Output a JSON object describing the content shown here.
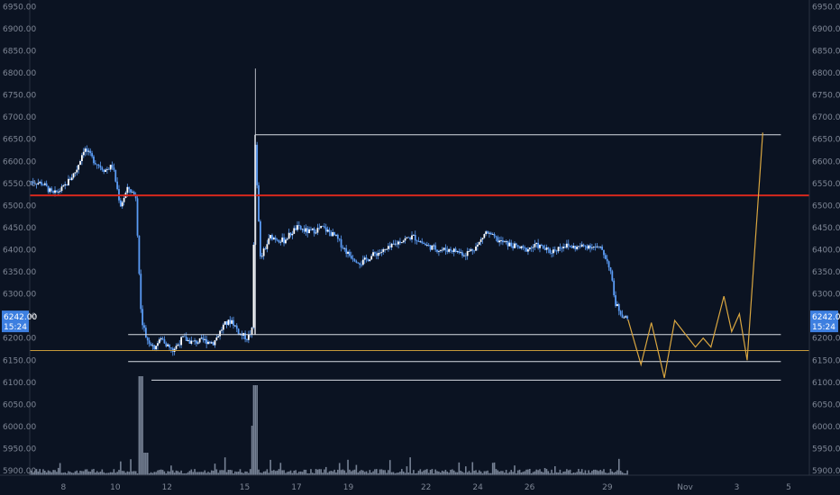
{
  "chart_data": {
    "type": "candlestick",
    "y_range": [
      5890,
      6965
    ],
    "y_ticks": [
      "5900.00",
      "5950.00",
      "6000.00",
      "6050.00",
      "6100.00",
      "6150.00",
      "6200.00",
      "6250.00",
      "6300.00",
      "6350.00",
      "6400.00",
      "6450.00",
      "6500.00",
      "6550.00",
      "6600.00",
      "6650.00",
      "6700.00",
      "6750.00",
      "6800.00",
      "6850.00",
      "6900.00",
      "6950.00"
    ],
    "x_labels": [
      {
        "label": "8",
        "day": 8
      },
      {
        "label": "10",
        "day": 10
      },
      {
        "label": "12",
        "day": 12
      },
      {
        "label": "15",
        "day": 15
      },
      {
        "label": "17",
        "day": 17
      },
      {
        "label": "19",
        "day": 19
      },
      {
        "label": "22",
        "day": 22
      },
      {
        "label": "24",
        "day": 24
      },
      {
        "label": "26",
        "day": 26
      },
      {
        "label": "29",
        "day": 29
      },
      {
        "label": "Nov",
        "day": 32
      },
      {
        "label": "3",
        "day": 34
      },
      {
        "label": "5",
        "day": 36
      }
    ],
    "day_range": [
      6.7,
      36.8
    ],
    "price_tag": {
      "value": 6242,
      "label": "6242.00",
      "countdown": "15:24"
    },
    "candle_color": "#5b9cf6",
    "volume_color": "#8a95a8",
    "price_path": [
      {
        "day": 6.7,
        "price": 6555
      },
      {
        "day": 7.2,
        "price": 6550
      },
      {
        "day": 7.6,
        "price": 6525
      },
      {
        "day": 8.0,
        "price": 6540
      },
      {
        "day": 8.5,
        "price": 6580
      },
      {
        "day": 8.8,
        "price": 6630
      },
      {
        "day": 9.2,
        "price": 6600
      },
      {
        "day": 9.6,
        "price": 6580
      },
      {
        "day": 9.9,
        "price": 6590
      },
      {
        "day": 10.2,
        "price": 6500
      },
      {
        "day": 10.5,
        "price": 6540
      },
      {
        "day": 10.8,
        "price": 6520
      },
      {
        "day": 11.0,
        "price": 6250
      },
      {
        "day": 11.2,
        "price": 6200
      },
      {
        "day": 11.5,
        "price": 6180
      },
      {
        "day": 11.8,
        "price": 6200
      },
      {
        "day": 12.2,
        "price": 6170
      },
      {
        "day": 12.6,
        "price": 6200
      },
      {
        "day": 13.0,
        "price": 6190
      },
      {
        "day": 13.4,
        "price": 6195
      },
      {
        "day": 13.8,
        "price": 6190
      },
      {
        "day": 14.2,
        "price": 6230
      },
      {
        "day": 14.5,
        "price": 6240
      },
      {
        "day": 14.8,
        "price": 6210
      },
      {
        "day": 15.1,
        "price": 6200
      },
      {
        "day": 15.3,
        "price": 6220
      },
      {
        "day": 15.4,
        "price": 6650
      },
      {
        "day": 15.6,
        "price": 6380
      },
      {
        "day": 16.0,
        "price": 6430
      },
      {
        "day": 16.5,
        "price": 6420
      },
      {
        "day": 17.0,
        "price": 6450
      },
      {
        "day": 17.5,
        "price": 6440
      },
      {
        "day": 18.0,
        "price": 6450
      },
      {
        "day": 18.5,
        "price": 6430
      },
      {
        "day": 19.0,
        "price": 6390
      },
      {
        "day": 19.5,
        "price": 6370
      },
      {
        "day": 20.0,
        "price": 6390
      },
      {
        "day": 20.5,
        "price": 6400
      },
      {
        "day": 21.0,
        "price": 6420
      },
      {
        "day": 21.5,
        "price": 6430
      },
      {
        "day": 22.0,
        "price": 6410
      },
      {
        "day": 22.5,
        "price": 6400
      },
      {
        "day": 23.0,
        "price": 6400
      },
      {
        "day": 23.5,
        "price": 6390
      },
      {
        "day": 24.0,
        "price": 6410
      },
      {
        "day": 24.3,
        "price": 6440
      },
      {
        "day": 24.8,
        "price": 6420
      },
      {
        "day": 25.3,
        "price": 6410
      },
      {
        "day": 25.8,
        "price": 6400
      },
      {
        "day": 26.3,
        "price": 6410
      },
      {
        "day": 26.8,
        "price": 6395
      },
      {
        "day": 27.3,
        "price": 6410
      },
      {
        "day": 27.8,
        "price": 6405
      },
      {
        "day": 28.3,
        "price": 6410
      },
      {
        "day": 28.8,
        "price": 6400
      },
      {
        "day": 29.1,
        "price": 6360
      },
      {
        "day": 29.3,
        "price": 6280
      },
      {
        "day": 29.6,
        "price": 6250
      },
      {
        "day": 29.8,
        "price": 6242
      }
    ],
    "horizontal_levels": [
      {
        "name": "red-resistance",
        "price": 6523,
        "day_start": 6.7,
        "day_end": 36.8,
        "color": "#d7281d",
        "width": 2
      },
      {
        "name": "orange-level",
        "price": 6172,
        "day_start": 6.7,
        "day_end": 36.8,
        "color": "#c69a3a",
        "width": 1
      },
      {
        "name": "white-top",
        "price": 6660,
        "day_start": 15.4,
        "day_end": 35.7,
        "color": "#d8dce3",
        "width": 1
      },
      {
        "name": "white-mid",
        "price": 6208,
        "day_start": 10.5,
        "day_end": 35.7,
        "color": "#d8dce3",
        "width": 1
      },
      {
        "name": "white-low",
        "price": 6147,
        "day_start": 10.5,
        "day_end": 35.7,
        "color": "#d8dce3",
        "width": 1
      },
      {
        "name": "white-bottom",
        "price": 6105,
        "day_start": 11.4,
        "day_end": 35.7,
        "color": "#d8dce3",
        "width": 1
      }
    ],
    "white_vertical": {
      "day": 15.4,
      "price_from": 6208,
      "price_to": 6660,
      "color": "#d8dce3"
    },
    "projection": {
      "color": "#d9a640",
      "points": [
        {
          "day": 29.8,
          "price": 6242
        },
        {
          "day": 30.3,
          "price": 6140
        },
        {
          "day": 30.7,
          "price": 6235
        },
        {
          "day": 31.2,
          "price": 6110
        },
        {
          "day": 31.6,
          "price": 6240
        },
        {
          "day": 32.4,
          "price": 6180
        },
        {
          "day": 32.7,
          "price": 6200
        },
        {
          "day": 33.0,
          "price": 6180
        },
        {
          "day": 33.5,
          "price": 6295
        },
        {
          "day": 33.8,
          "price": 6215
        },
        {
          "day": 34.1,
          "price": 6255
        },
        {
          "day": 34.4,
          "price": 6150
        },
        {
          "day": 35.0,
          "price": 6665
        }
      ]
    }
  }
}
